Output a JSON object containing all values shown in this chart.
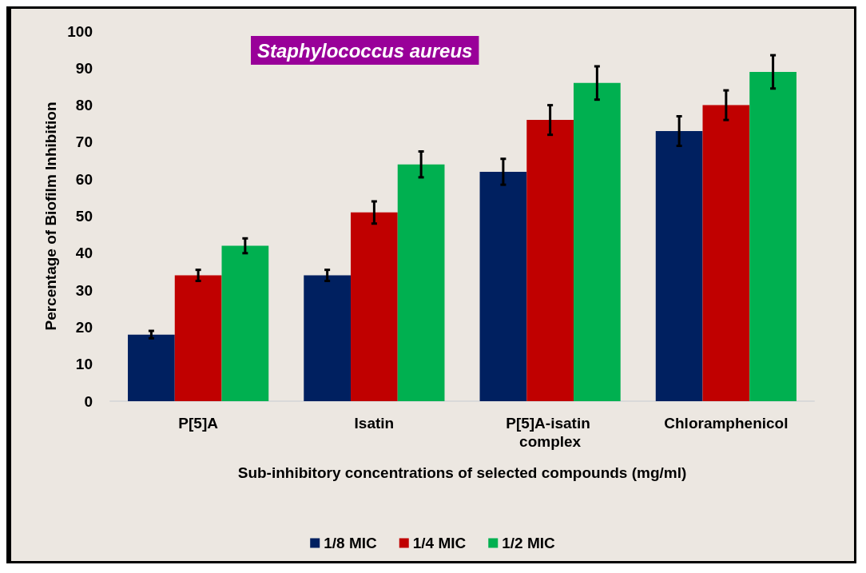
{
  "chart_data": {
    "type": "bar",
    "title": "Staphylococcus aureus",
    "xlabel": "Sub-inhibitory concentrations of selected compounds (mg/ml)",
    "ylabel": "Percentage of Biofilm Inhibition",
    "categories": [
      "P[5]A",
      "Isatin",
      "P[5]A-isatin complex",
      "Chloramphenicol"
    ],
    "series": [
      {
        "name": "1/8 MIC",
        "color": "#002060",
        "values": [
          18,
          34,
          62,
          73
        ],
        "errors": [
          1,
          1.5,
          3.5,
          4
        ]
      },
      {
        "name": "1/4 MIC",
        "color": "#c00000",
        "values": [
          34,
          51,
          76,
          80
        ],
        "errors": [
          1.5,
          3,
          4,
          4
        ]
      },
      {
        "name": "1/2 MIC",
        "color": "#00b050",
        "values": [
          42,
          64,
          86,
          89
        ],
        "errors": [
          2,
          3.5,
          4.5,
          4.5
        ]
      }
    ],
    "ylim": [
      0,
      100
    ],
    "yticks": [
      0,
      10,
      20,
      30,
      40,
      50,
      60,
      70,
      80,
      90,
      100
    ],
    "grid": false,
    "legend": "bottom"
  }
}
